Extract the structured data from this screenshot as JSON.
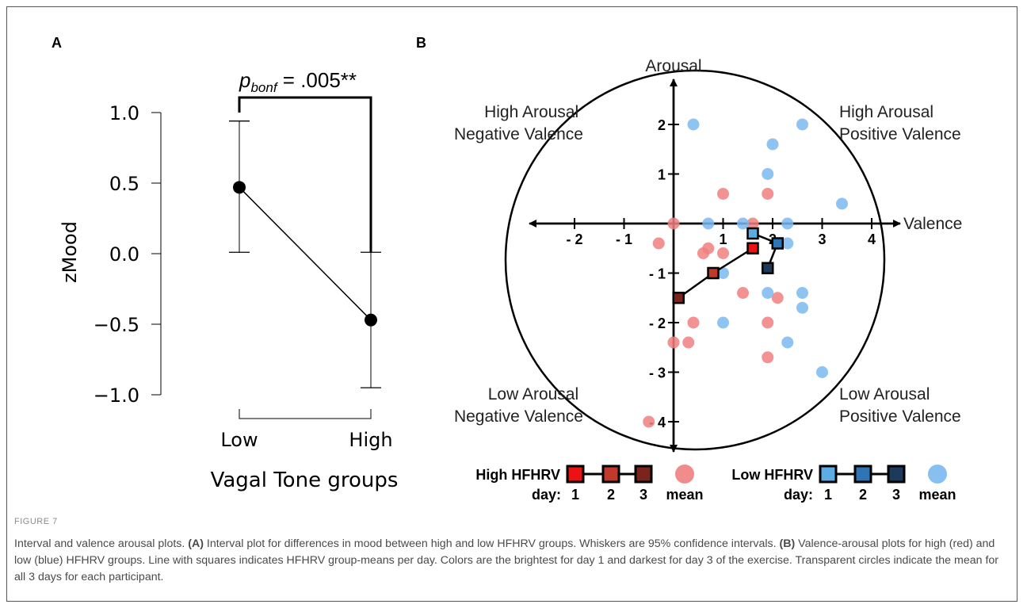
{
  "panel_a": {
    "label": "A",
    "annotation_p": "p",
    "annotation_sub": "bonf",
    "annotation_value": " = .005**",
    "ylabel": "zMood",
    "xlabel": "Vagal Tone groups",
    "yticks": [
      "1.0",
      "0.5",
      "0.0",
      "−0.5",
      "−1.0"
    ],
    "xticks": [
      "Low",
      "High"
    ]
  },
  "panel_b": {
    "label": "B",
    "x_axis_label": "Valence",
    "y_axis_label": "Arousal",
    "x_ticks": [
      "- 2",
      "- 1",
      "1",
      "2",
      "3",
      "4"
    ],
    "y_ticks": [
      "2",
      "1",
      "- 1",
      "- 2",
      "- 3",
      "- 4"
    ],
    "quadrants": {
      "top_left": [
        "High Arousal",
        "Negative Valence"
      ],
      "top_right": [
        "High Arousal",
        "Positive Valence"
      ],
      "bottom_left": [
        "Low Arousal",
        "Negative Valence"
      ],
      "bottom_right": [
        "Low Arousal",
        "Positive Valence"
      ]
    },
    "legend": {
      "high_label": "High HFHRV",
      "low_label": "Low HFHRV",
      "day_label": "day:",
      "days": [
        "1",
        "2",
        "3"
      ],
      "mean_label": "mean"
    }
  },
  "colors": {
    "red_d1": "#ee1111",
    "red_d2": "#c0392b",
    "red_d3": "#7b241c",
    "red_mean": "#f07f7f",
    "blue_d1": "#5dade2",
    "blue_d2": "#2e75b6",
    "blue_d3": "#1b3a5c",
    "blue_mean": "#7ab8f0"
  },
  "chart_data": [
    {
      "type": "line",
      "x": [
        "Low",
        "High"
      ],
      "y": [
        0.47,
        -0.47
      ],
      "ci_lower": [
        0.01,
        -0.95
      ],
      "ci_upper": [
        0.94,
        0.01
      ],
      "ylim": [
        -1.0,
        1.0
      ],
      "ylabel": "zMood",
      "xlabel": "Vagal Tone groups"
    },
    {
      "type": "scatter",
      "xlabel": "Valence",
      "ylabel": "Arousal",
      "xlim": [
        -2,
        4
      ],
      "ylim": [
        -4,
        2
      ],
      "series": [
        {
          "name": "High HFHRV",
          "points": [
            [
              0.0,
              0.0
            ],
            [
              1.0,
              0.6
            ],
            [
              1.9,
              0.6
            ],
            [
              1.6,
              0.0
            ],
            [
              -0.3,
              -0.4
            ],
            [
              0.6,
              -0.6
            ],
            [
              0.7,
              -0.5
            ],
            [
              1.0,
              -0.6
            ],
            [
              1.4,
              -1.4
            ],
            [
              2.1,
              -1.5
            ],
            [
              0.4,
              -2.0
            ],
            [
              1.9,
              -2.0
            ],
            [
              0.0,
              -2.4
            ],
            [
              0.3,
              -2.4
            ],
            [
              1.9,
              -2.7
            ],
            [
              -0.5,
              -4.0
            ]
          ]
        },
        {
          "name": "Low HFHRV",
          "points": [
            [
              0.4,
              2.0
            ],
            [
              2.6,
              2.0
            ],
            [
              2.0,
              1.6
            ],
            [
              1.9,
              1.0
            ],
            [
              3.4,
              0.4
            ],
            [
              0.7,
              0.0
            ],
            [
              1.4,
              0.0
            ],
            [
              2.3,
              0.0
            ],
            [
              2.3,
              -0.4
            ],
            [
              1.0,
              -1.0
            ],
            [
              1.9,
              -1.4
            ],
            [
              2.6,
              -1.4
            ],
            [
              2.6,
              -1.7
            ],
            [
              1.0,
              -2.0
            ],
            [
              2.3,
              -2.4
            ],
            [
              3.0,
              -3.0
            ]
          ]
        },
        {
          "name": "High HFHRV",
          "points": [
            [
              1.6,
              -0.5
            ],
            [
              0.8,
              -1.0
            ],
            [
              0.1,
              -1.5
            ]
          ]
        },
        {
          "name": "Low HFHRV",
          "points": [
            [
              1.6,
              -0.2
            ],
            [
              2.1,
              -0.4
            ],
            [
              1.9,
              -0.9
            ]
          ]
        }
      ]
    }
  ],
  "caption": {
    "figure_label": "FIGURE 7",
    "text_html": "Interval and valence arousal plots. <b>(A)</b> Interval plot for differences in mood between high and low HFHRV groups. Whiskers are 95% confidence intervals. <b>(B)</b> Valence-arousal plots for high (red) and low (blue) HFHRV groups. Line with squares indicates HFHRV group-means per day. Colors are the brightest for day 1 and darkest for day 3 of the exercise. Transparent circles indicate the mean for all 3 days for each participant."
  }
}
